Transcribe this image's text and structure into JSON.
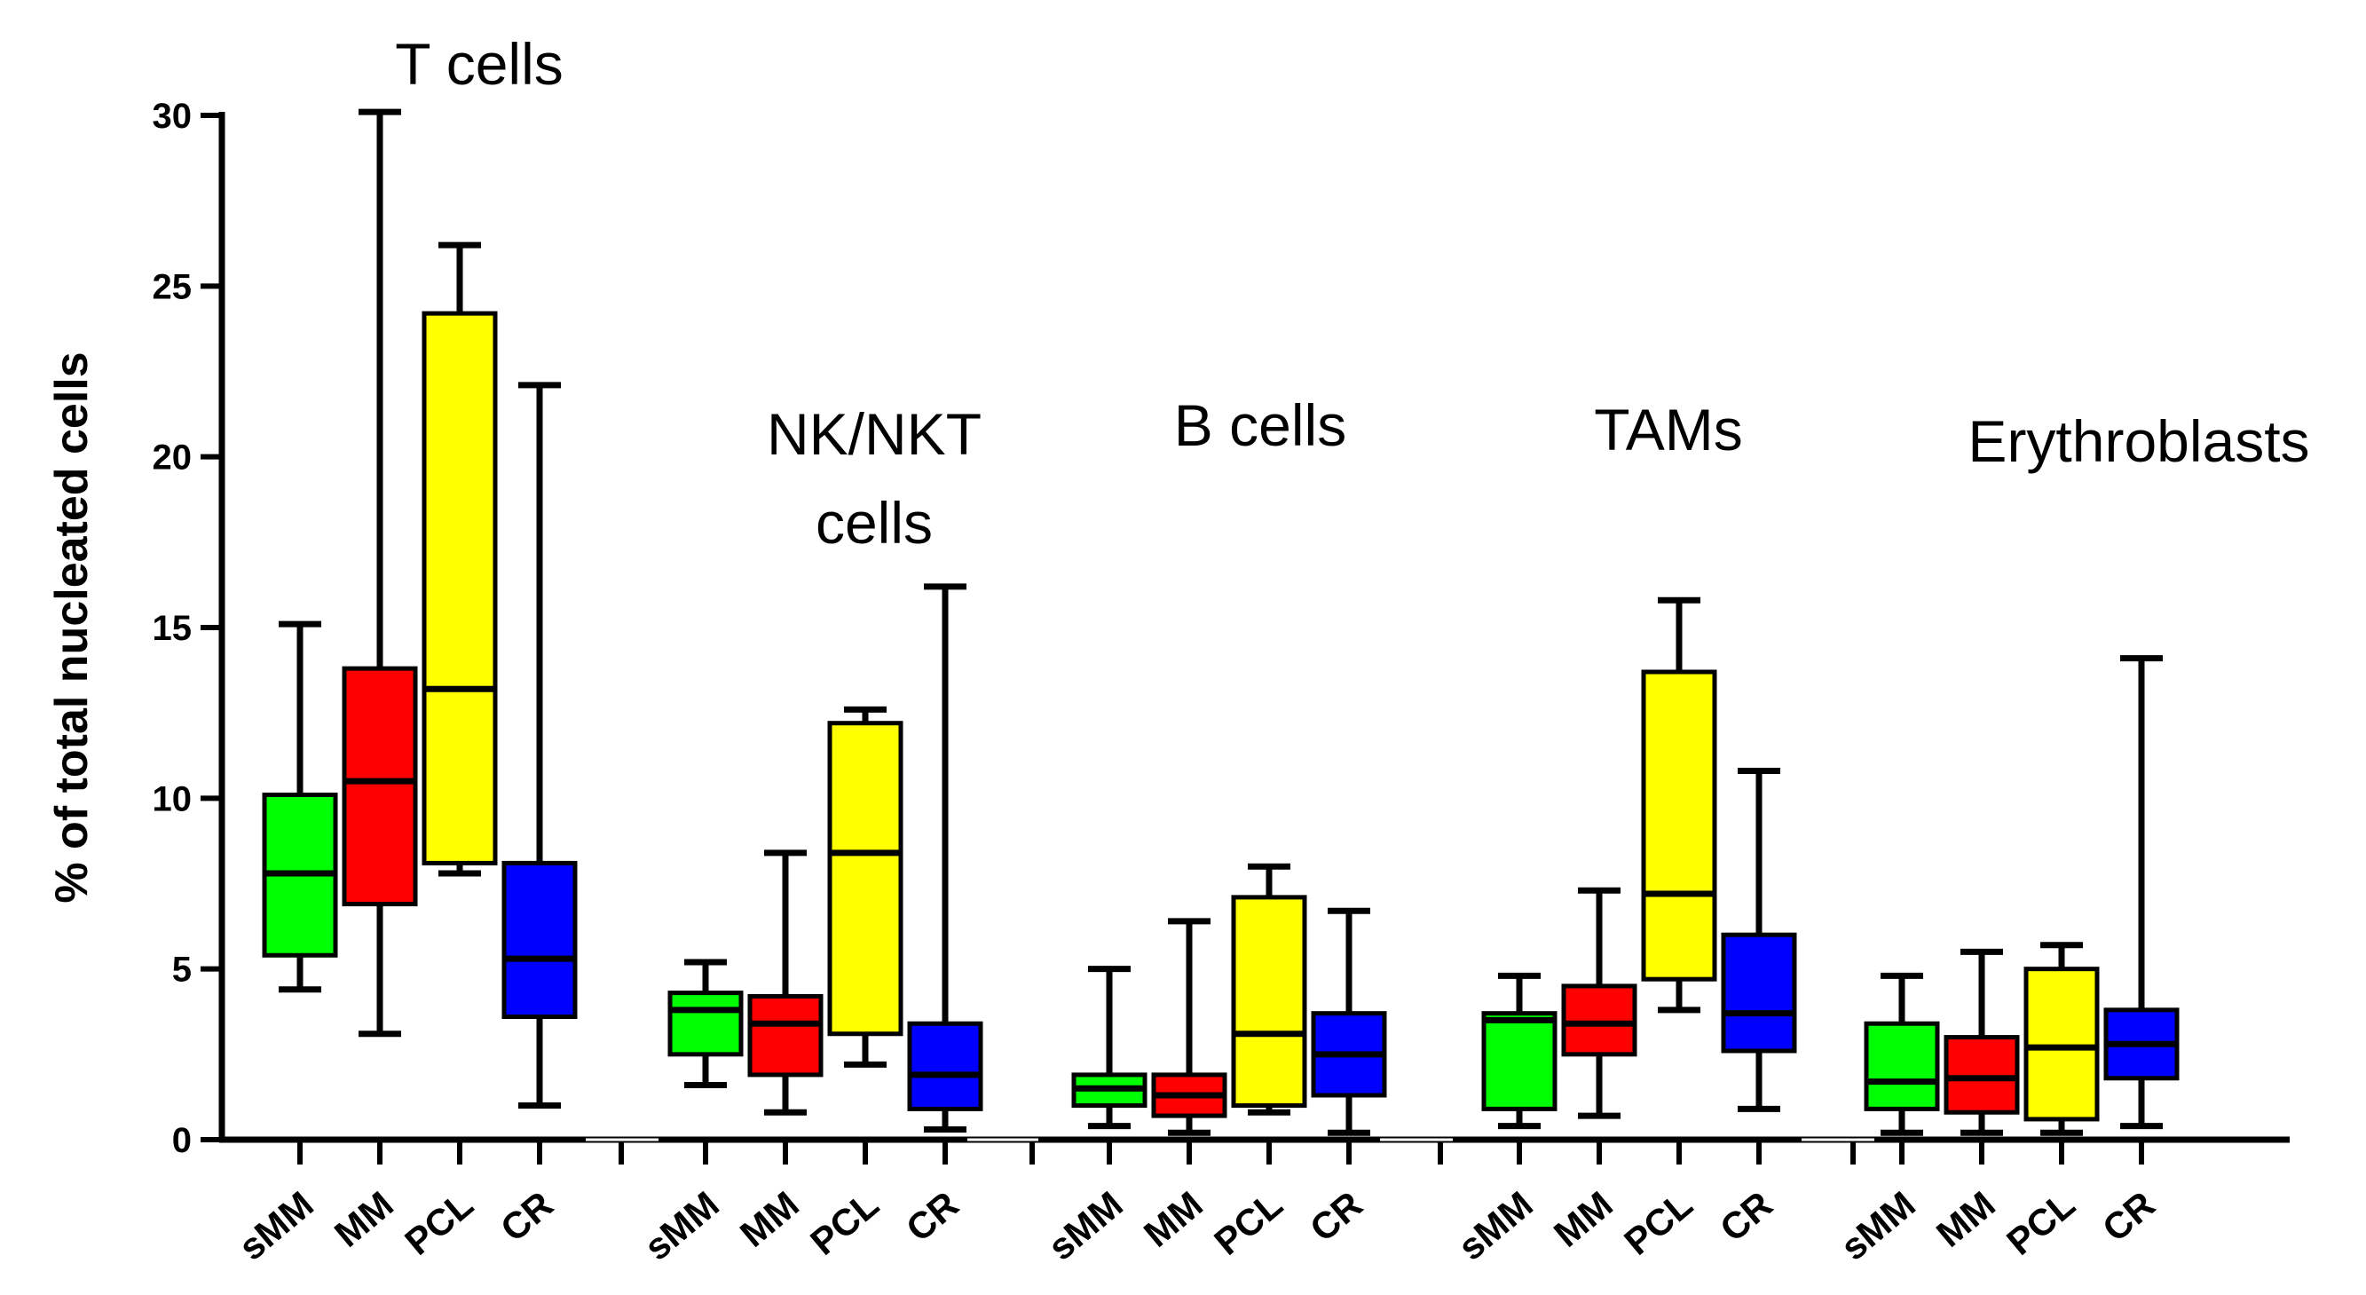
{
  "chart_data": {
    "type": "boxplot",
    "ylabel": "% of total nucleated cells",
    "xlabel": "",
    "ylim": [
      0,
      30
    ],
    "yticks": [
      0,
      5,
      10,
      15,
      20,
      25,
      30
    ],
    "categories": [
      "sMM",
      "MM",
      "PCL",
      "CR"
    ],
    "colors": {
      "sMM": "#00ff00",
      "MM": "#ff0000",
      "PCL": "#ffff00",
      "CR": "#0000ff"
    },
    "groups": [
      {
        "label_lines": [
          "T cells"
        ],
        "boxes": [
          {
            "category": "sMM",
            "min": 4.4,
            "q1": 5.4,
            "median": 7.8,
            "q3": 10.1,
            "max": 15.1
          },
          {
            "category": "MM",
            "min": 3.1,
            "q1": 6.9,
            "median": 10.5,
            "q3": 13.8,
            "max": 30.1
          },
          {
            "category": "PCL",
            "min": 7.8,
            "q1": 8.1,
            "median": 13.2,
            "q3": 24.2,
            "max": 26.2
          },
          {
            "category": "CR",
            "min": 1.0,
            "q1": 3.6,
            "median": 5.3,
            "q3": 8.1,
            "max": 22.1
          }
        ]
      },
      {
        "label_lines": [
          "NK/NKT",
          "cells"
        ],
        "boxes": [
          {
            "category": "sMM",
            "min": 1.6,
            "q1": 2.5,
            "median": 3.8,
            "q3": 4.3,
            "max": 5.2
          },
          {
            "category": "MM",
            "min": 0.8,
            "q1": 1.9,
            "median": 3.4,
            "q3": 4.2,
            "max": 8.4
          },
          {
            "category": "PCL",
            "min": 2.2,
            "q1": 3.1,
            "median": 8.4,
            "q3": 12.2,
            "max": 12.6
          },
          {
            "category": "CR",
            "min": 0.3,
            "q1": 0.9,
            "median": 1.9,
            "q3": 3.4,
            "max": 16.2
          }
        ]
      },
      {
        "label_lines": [
          "B cells"
        ],
        "boxes": [
          {
            "category": "sMM",
            "min": 0.4,
            "q1": 1.0,
            "median": 1.5,
            "q3": 1.9,
            "max": 5.0
          },
          {
            "category": "MM",
            "min": 0.2,
            "q1": 0.7,
            "median": 1.3,
            "q3": 1.9,
            "max": 6.4
          },
          {
            "category": "PCL",
            "min": 0.8,
            "q1": 1.0,
            "median": 3.1,
            "q3": 7.1,
            "max": 8.0
          },
          {
            "category": "CR",
            "min": 0.2,
            "q1": 1.3,
            "median": 2.5,
            "q3": 3.7,
            "max": 6.7
          }
        ]
      },
      {
        "label_lines": [
          "TAMs"
        ],
        "boxes": [
          {
            "category": "sMM",
            "min": 0.4,
            "q1": 0.9,
            "median": 3.5,
            "q3": 3.7,
            "max": 4.8
          },
          {
            "category": "MM",
            "min": 0.7,
            "q1": 2.5,
            "median": 3.4,
            "q3": 4.5,
            "max": 7.3
          },
          {
            "category": "PCL",
            "min": 3.8,
            "q1": 4.7,
            "median": 7.2,
            "q3": 13.7,
            "max": 15.8
          },
          {
            "category": "CR",
            "min": 0.9,
            "q1": 2.6,
            "median": 3.7,
            "q3": 6.0,
            "max": 10.8
          }
        ]
      },
      {
        "label_lines": [
          "Erythroblasts"
        ],
        "boxes": [
          {
            "category": "sMM",
            "min": 0.2,
            "q1": 0.9,
            "median": 1.7,
            "q3": 3.4,
            "max": 4.8
          },
          {
            "category": "MM",
            "min": 0.2,
            "q1": 0.8,
            "median": 1.8,
            "q3": 3.0,
            "max": 5.5
          },
          {
            "category": "PCL",
            "min": 0.2,
            "q1": 0.6,
            "median": 2.7,
            "q3": 5.0,
            "max": 5.7
          },
          {
            "category": "CR",
            "min": 0.4,
            "q1": 1.8,
            "median": 2.8,
            "q3": 3.8,
            "max": 14.1
          }
        ]
      }
    ]
  }
}
